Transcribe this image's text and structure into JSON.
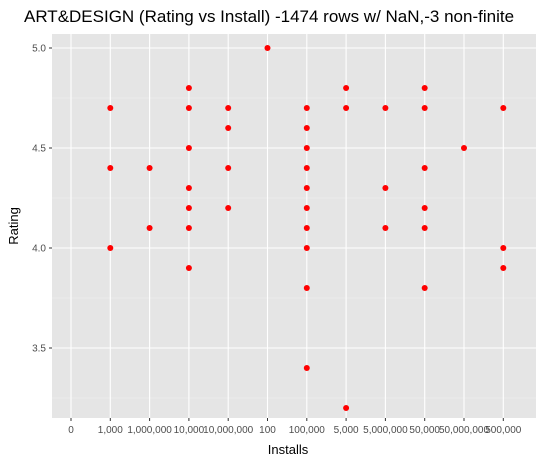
{
  "chart_data": {
    "type": "scatter",
    "title": "ART&DESIGN (Rating vs Install) -1474 rows w/ NaN,-3 non-finite",
    "xlabel": "Installs",
    "ylabel": "Rating",
    "x_categories": [
      "0",
      "1,000",
      "1,000,000",
      "10,000",
      "10,000,000",
      "100",
      "100,000",
      "5,000",
      "5,000,000",
      "50,000",
      "50,000,000",
      "500,000"
    ],
    "y_ticks": [
      3.5,
      4.0,
      4.5,
      5.0
    ],
    "ylim": [
      3.15,
      5.07
    ],
    "grid": true,
    "point_color": "#ff0000",
    "panel_color": "#e5e5e5",
    "points": [
      {
        "x": "1,000",
        "y": 4.7
      },
      {
        "x": "1,000",
        "y": 4.4
      },
      {
        "x": "1,000",
        "y": 4.0
      },
      {
        "x": "1,000,000",
        "y": 4.4
      },
      {
        "x": "1,000,000",
        "y": 4.1
      },
      {
        "x": "10,000",
        "y": 4.8
      },
      {
        "x": "10,000",
        "y": 4.7
      },
      {
        "x": "10,000",
        "y": 4.5
      },
      {
        "x": "10,000",
        "y": 4.3
      },
      {
        "x": "10,000",
        "y": 4.2
      },
      {
        "x": "10,000",
        "y": 4.1
      },
      {
        "x": "10,000",
        "y": 3.9
      },
      {
        "x": "10,000,000",
        "y": 4.7
      },
      {
        "x": "10,000,000",
        "y": 4.6
      },
      {
        "x": "10,000,000",
        "y": 4.4
      },
      {
        "x": "10,000,000",
        "y": 4.2
      },
      {
        "x": "100",
        "y": 5.0
      },
      {
        "x": "100,000",
        "y": 4.7
      },
      {
        "x": "100,000",
        "y": 4.6
      },
      {
        "x": "100,000",
        "y": 4.5
      },
      {
        "x": "100,000",
        "y": 4.4
      },
      {
        "x": "100,000",
        "y": 4.3
      },
      {
        "x": "100,000",
        "y": 4.2
      },
      {
        "x": "100,000",
        "y": 4.1
      },
      {
        "x": "100,000",
        "y": 4.0
      },
      {
        "x": "100,000",
        "y": 3.8
      },
      {
        "x": "100,000",
        "y": 3.4
      },
      {
        "x": "5,000",
        "y": 4.8
      },
      {
        "x": "5,000",
        "y": 4.7
      },
      {
        "x": "5,000",
        "y": 3.2
      },
      {
        "x": "5,000,000",
        "y": 4.7
      },
      {
        "x": "5,000,000",
        "y": 4.3
      },
      {
        "x": "5,000,000",
        "y": 4.1
      },
      {
        "x": "50,000",
        "y": 4.8
      },
      {
        "x": "50,000",
        "y": 4.7
      },
      {
        "x": "50,000",
        "y": 4.4
      },
      {
        "x": "50,000",
        "y": 4.2
      },
      {
        "x": "50,000",
        "y": 4.1
      },
      {
        "x": "50,000",
        "y": 3.8
      },
      {
        "x": "50,000,000",
        "y": 4.5
      },
      {
        "x": "500,000",
        "y": 4.7
      },
      {
        "x": "500,000",
        "y": 4.0
      },
      {
        "x": "500,000",
        "y": 3.9
      }
    ]
  }
}
